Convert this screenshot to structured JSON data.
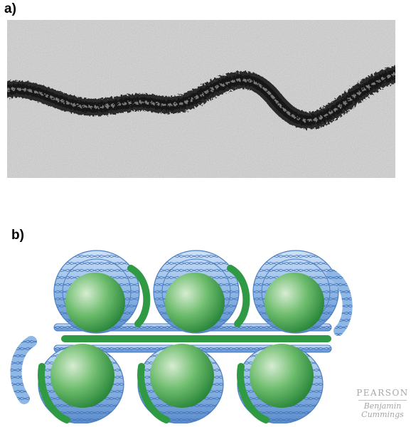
{
  "panels": {
    "a_label": "a)",
    "b_label": "b)"
  },
  "logo": {
    "line1": "PEARSON",
    "line2": "Benjamin",
    "line3": "Cummings"
  },
  "colors": {
    "micrograph_background": "#d4d4d4",
    "fiber_dark": "#1a1a1a",
    "histone_green": "#2f9a43",
    "histone_highlight": "#c8e6c4",
    "dna_blue": "#8fb7e6",
    "dna_dark": "#4a7fc2",
    "logo_gray": "#a6a6a6"
  },
  "icons": [
    "nucleosome-icon",
    "dna-helix-icon",
    "linker-dna-icon"
  ]
}
